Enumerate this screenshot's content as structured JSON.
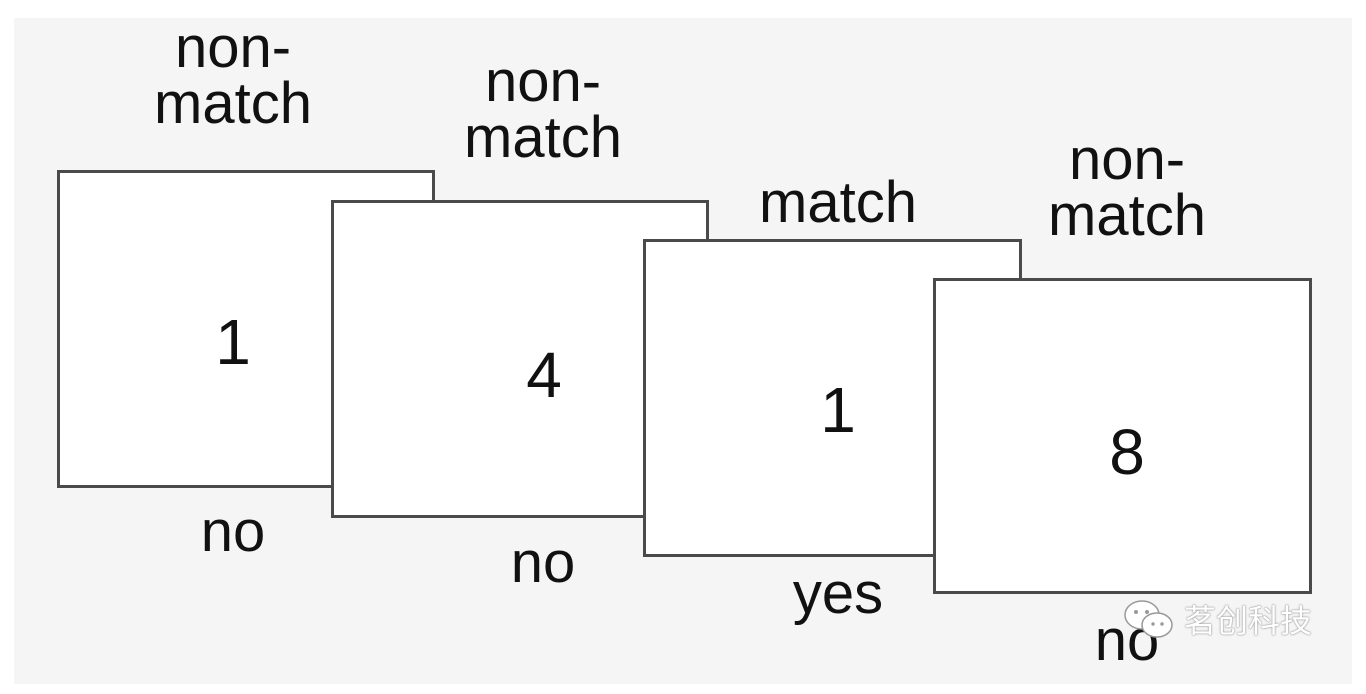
{
  "cards": [
    {
      "top_label": "non-\nmatch",
      "number": "1",
      "answer": "no"
    },
    {
      "top_label": "non-\nmatch",
      "number": "4",
      "answer": "no"
    },
    {
      "top_label": "match",
      "number": "1",
      "answer": "yes"
    },
    {
      "top_label": "non-\nmatch",
      "number": "8",
      "answer": "no"
    }
  ],
  "watermark": {
    "text": "茗创科技",
    "icon": "wechat-icon"
  }
}
